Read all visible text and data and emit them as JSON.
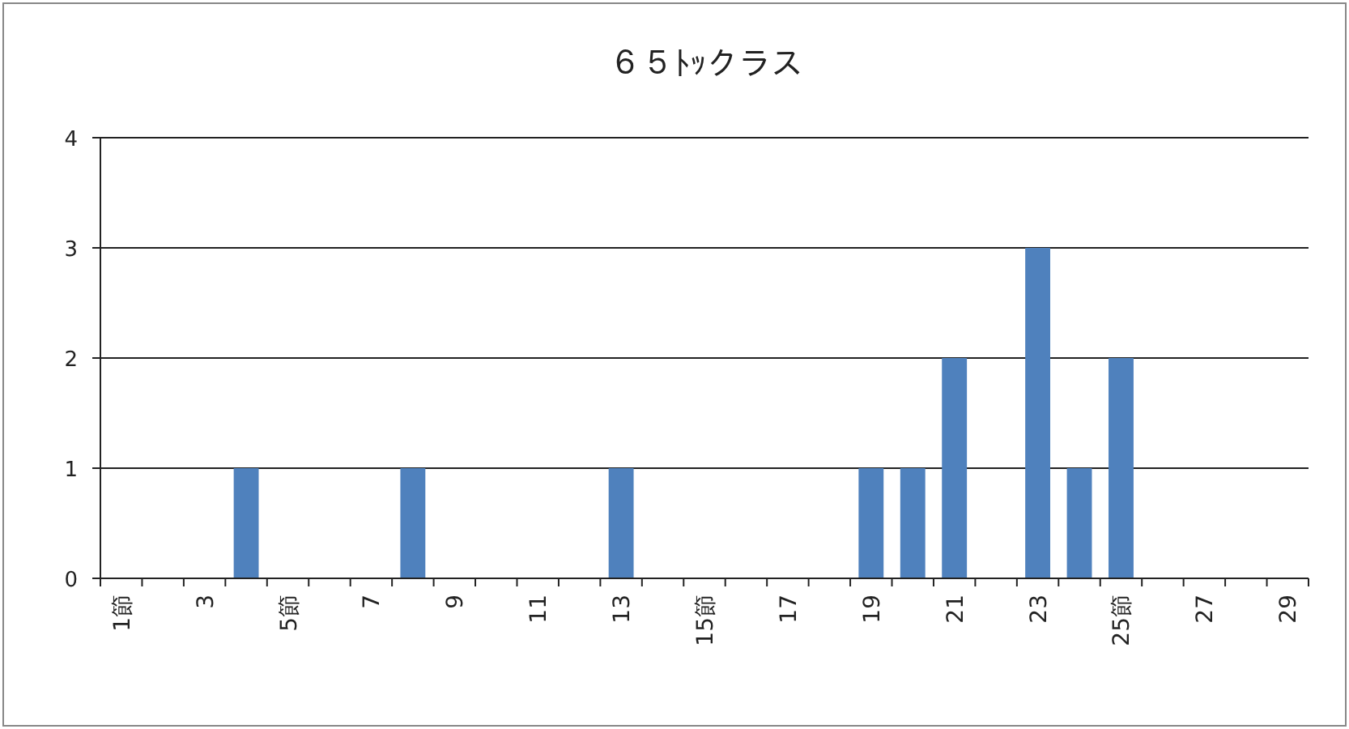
{
  "chart_data": {
    "type": "bar",
    "title": "６５ﾄｯクラス",
    "categories": [
      "1節",
      null,
      "3",
      null,
      "5節",
      null,
      "7",
      null,
      "9",
      null,
      "11",
      null,
      "13",
      null,
      "15節",
      null,
      "17",
      null,
      "19",
      null,
      "21",
      null,
      "23",
      null,
      "25節",
      null,
      "27",
      null,
      "29"
    ],
    "values": [
      0,
      0,
      0,
      1,
      0,
      0,
      0,
      1,
      0,
      0,
      0,
      0,
      1,
      0,
      0,
      0,
      0,
      0,
      1,
      1,
      2,
      0,
      3,
      1,
      2,
      0,
      0,
      0,
      0
    ],
    "color": "#4f81bd",
    "ylim": [
      0,
      4
    ],
    "yticks": [
      0,
      1,
      2,
      3,
      4
    ],
    "grid": "y"
  }
}
